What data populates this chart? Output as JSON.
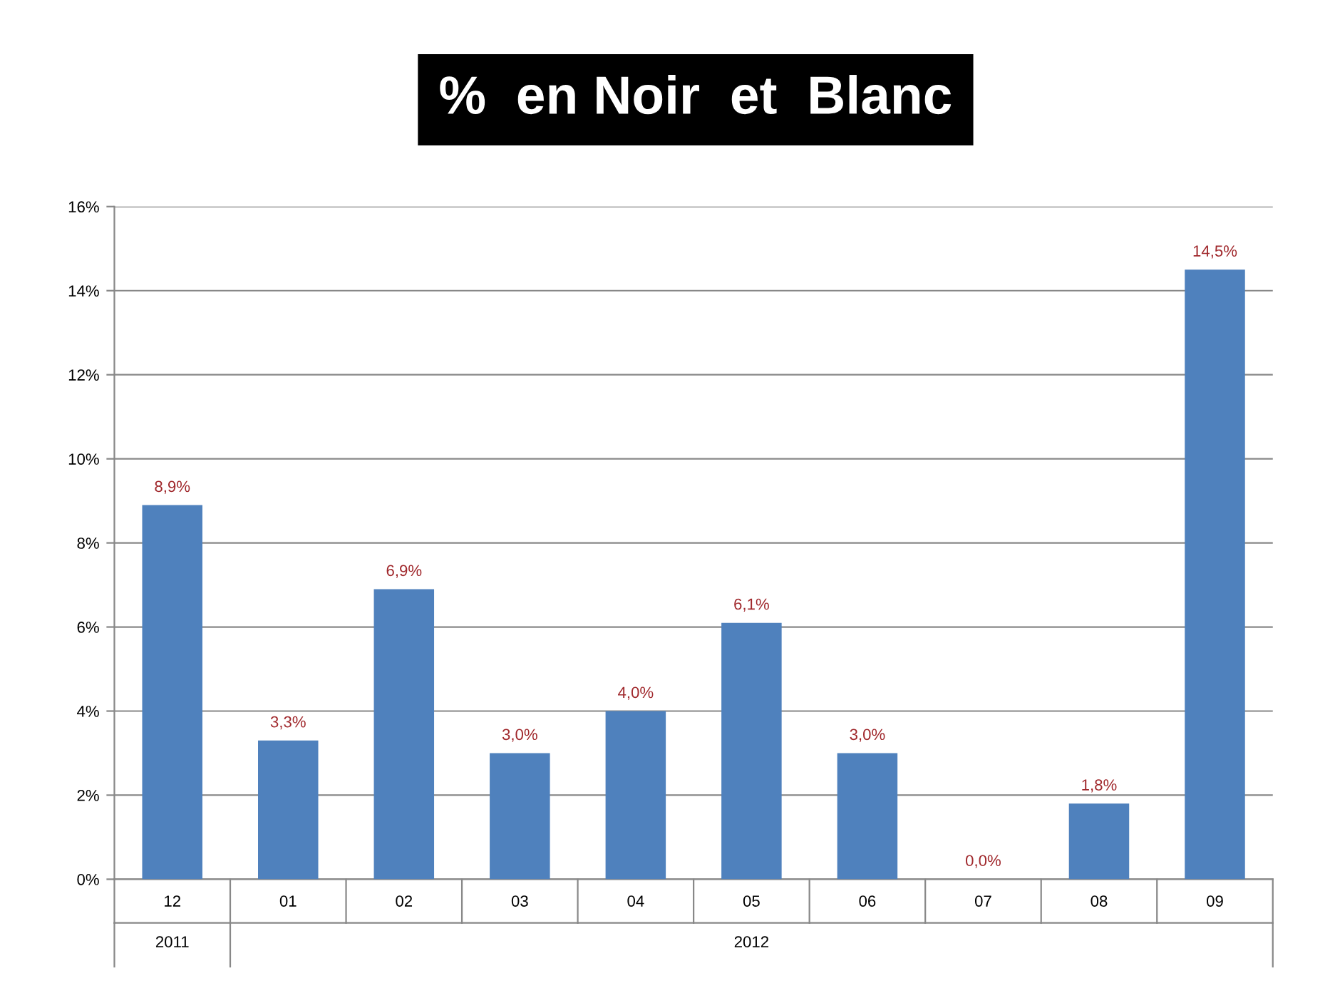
{
  "chart_data": {
    "type": "bar",
    "title": "%  en Noir  et  Blanc",
    "categories": [
      "12",
      "01",
      "02",
      "03",
      "04",
      "05",
      "06",
      "07",
      "08",
      "09"
    ],
    "values": [
      8.9,
      3.3,
      6.9,
      3.0,
      4.0,
      6.1,
      3.0,
      0.0,
      1.8,
      14.5
    ],
    "value_labels": [
      "8,9%",
      "3,3%",
      "6,9%",
      "3,0%",
      "4,0%",
      "6,1%",
      "3,0%",
      "0,0%",
      "1,8%",
      "14,5%"
    ],
    "color": "#4f81bd",
    "ylim": [
      0,
      16
    ],
    "yticks": [
      {
        "value": 0,
        "label": "0%"
      },
      {
        "value": 2,
        "label": "2%"
      },
      {
        "value": 4,
        "label": "4%"
      },
      {
        "value": 6,
        "label": "6%"
      },
      {
        "value": 8,
        "label": "8%"
      },
      {
        "value": 10,
        "label": "10%"
      },
      {
        "value": 12,
        "label": "12%"
      },
      {
        "value": 14,
        "label": "14%"
      },
      {
        "value": 16,
        "label": "16%"
      }
    ],
    "grid": "y",
    "legend": false,
    "annotations": [
      "2011",
      "2012"
    ]
  }
}
